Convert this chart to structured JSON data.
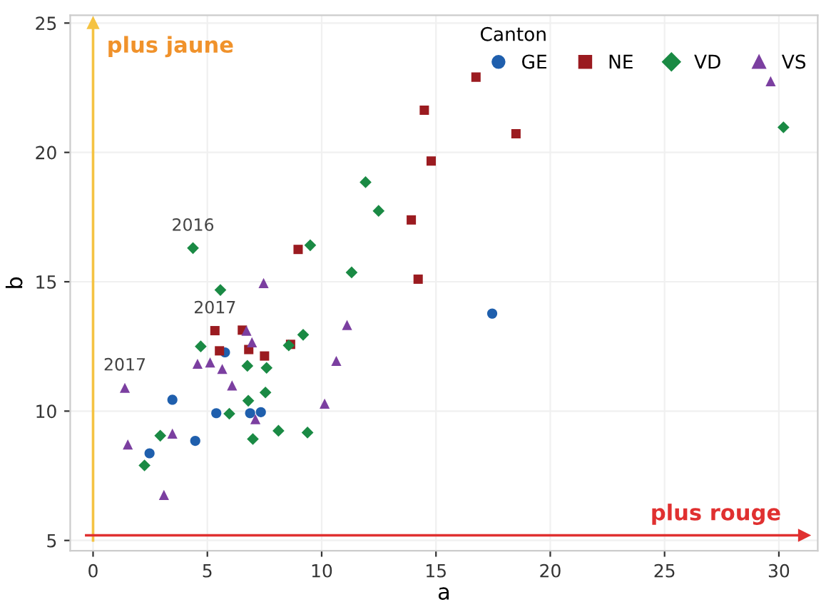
{
  "chart_data": {
    "type": "scatter",
    "xlabel": "a",
    "ylabel": "b",
    "legend_title": "Canton",
    "legend": "top right",
    "grid": true,
    "xlim": [
      -1,
      31.7
    ],
    "ylim": [
      4.6,
      25.3
    ],
    "xticks": [
      0,
      5,
      10,
      15,
      20,
      25,
      30
    ],
    "yticks": [
      5,
      10,
      15,
      20,
      25
    ],
    "series": [
      {
        "name": "GE",
        "color": "#1f5fad",
        "marker": "circle",
        "x": [
          3.47,
          4.47,
          2.47,
          5.39,
          6.87,
          7.34,
          5.77,
          17.46
        ],
        "values": [
          10.44,
          8.85,
          8.37,
          9.92,
          9.92,
          9.96,
          12.27,
          13.77
        ]
      },
      {
        "name": "NE",
        "color": "#9b1b20",
        "marker": "square",
        "x": [
          5.33,
          5.53,
          6.53,
          6.81,
          7.5,
          8.64,
          8.97,
          13.92,
          14.22,
          14.49,
          14.79,
          16.75,
          18.5
        ],
        "values": [
          13.11,
          12.33,
          13.13,
          12.38,
          12.13,
          12.58,
          16.25,
          17.39,
          15.1,
          21.63,
          19.67,
          22.91,
          20.72
        ]
      },
      {
        "name": "VD",
        "color": "#1a8a44",
        "marker": "diamond",
        "x": [
          4.37,
          5.57,
          9.5,
          11.31,
          11.92,
          12.49,
          4.71,
          6.75,
          7.59,
          6.79,
          7.54,
          5.96,
          8.11,
          9.38,
          6.99,
          2.94,
          2.25,
          8.56,
          9.19,
          30.2
        ],
        "values": [
          16.3,
          14.68,
          16.41,
          15.36,
          18.85,
          17.74,
          12.5,
          11.75,
          11.67,
          10.4,
          10.72,
          9.9,
          9.24,
          9.17,
          8.92,
          9.05,
          7.9,
          12.54,
          12.95,
          20.97
        ]
      },
      {
        "name": "VS",
        "color": "#7b3fa0",
        "marker": "triangle",
        "x": [
          7.46,
          11.11,
          6.71,
          6.95,
          4.57,
          5.12,
          5.65,
          10.64,
          6.08,
          1.39,
          10.13,
          7.1,
          3.47,
          1.52,
          3.1,
          29.64
        ],
        "values": [
          14.95,
          13.33,
          13.11,
          12.66,
          11.83,
          11.88,
          11.63,
          11.94,
          10.99,
          10.9,
          10.29,
          9.69,
          9.13,
          8.71,
          6.76,
          22.75
        ]
      }
    ],
    "annotations": [
      {
        "text": "2016",
        "x": 4.37,
        "y": 16.3
      },
      {
        "text": "2017",
        "x": 5.33,
        "y": 13.11
      },
      {
        "text": "2017",
        "x": 1.39,
        "y": 10.9
      }
    ],
    "ref_lines": [
      {
        "axis": "x",
        "value": 0,
        "label": "plus jaune",
        "color": "#f5c342"
      },
      {
        "axis": "y",
        "value": 5.2,
        "label": "plus rouge",
        "color": "#e03030"
      }
    ]
  }
}
